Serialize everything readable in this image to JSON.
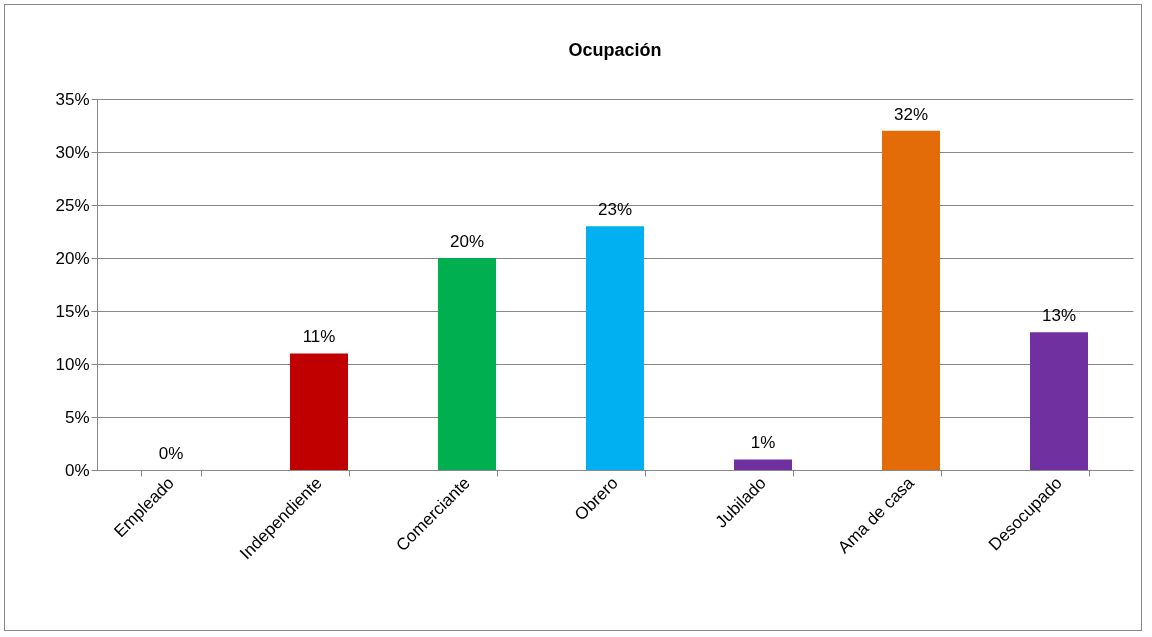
{
  "chart_data": {
    "type": "bar",
    "title": "Ocupación",
    "categories": [
      "Empleado",
      "Independiente",
      "Comerciante",
      "Obrero",
      "Jubilado",
      "Ama de casa",
      "Desocupado"
    ],
    "values": [
      0,
      11,
      20,
      23,
      1,
      32,
      13
    ],
    "colors": [
      "#4f81bd",
      "#c00000",
      "#00b050",
      "#00b0f0",
      "#7030a0",
      "#e36c09",
      "#7030a0"
    ],
    "value_labels": [
      "0%",
      "11%",
      "20%",
      "23%",
      "1%",
      "32%",
      "13%"
    ],
    "ylim": [
      0,
      35
    ],
    "yticks": [
      {
        "value": 0,
        "label": "0%"
      },
      {
        "value": 5,
        "label": "5%"
      },
      {
        "value": 10,
        "label": "10%"
      },
      {
        "value": 15,
        "label": "15%"
      },
      {
        "value": 20,
        "label": "20%"
      },
      {
        "value": 25,
        "label": "25%"
      },
      {
        "value": 30,
        "label": "30%"
      },
      {
        "value": 35,
        "label": "35%"
      }
    ],
    "grid": "y",
    "legend": false
  }
}
